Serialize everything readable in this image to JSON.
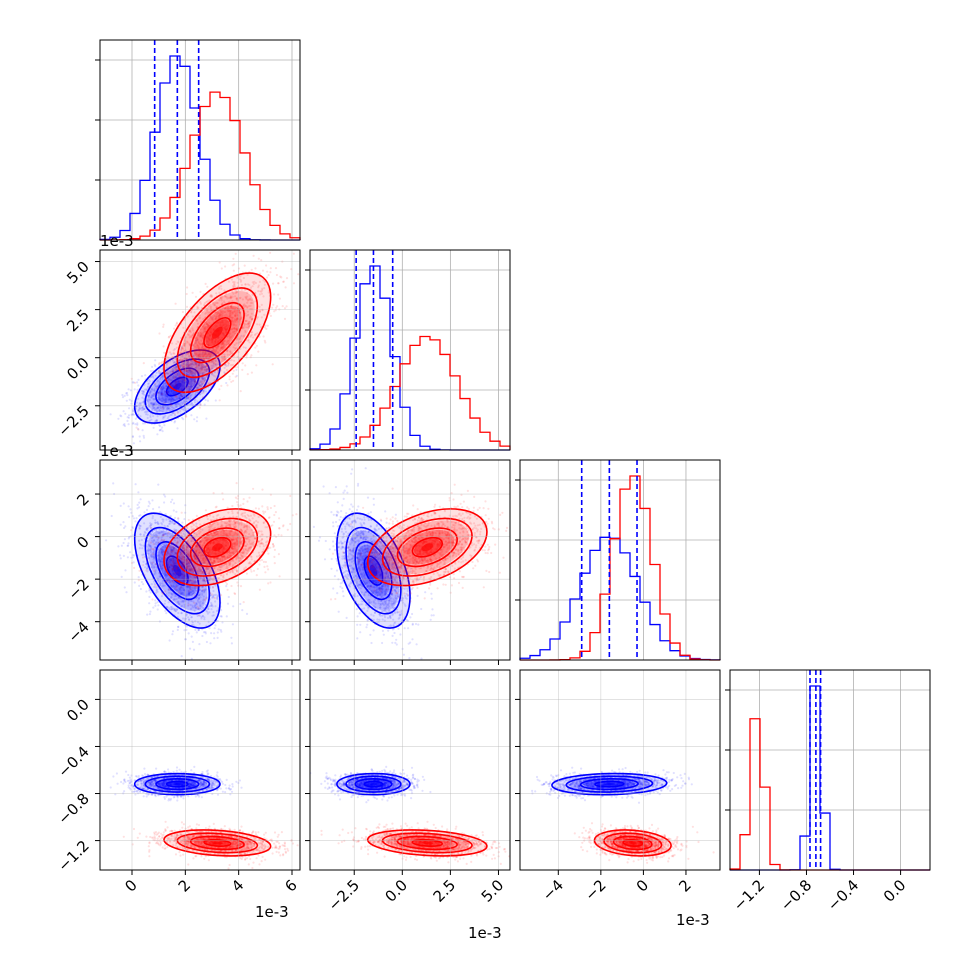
{
  "chart_data": {
    "type": "corner",
    "colors": {
      "blue": "#0000ff",
      "red": "#ff0000"
    },
    "grid": true,
    "parameters": [
      {
        "range": [
          -1.2,
          6.3
        ],
        "offset_label": "1e-3",
        "tick_values": [
          0,
          2,
          4,
          6
        ],
        "tick_labels": [
          "0",
          "2",
          "4",
          "6"
        ]
      },
      {
        "range": [
          -4.8,
          5.6
        ],
        "offset_label": "1e-3",
        "tick_values": [
          -2.5,
          0,
          2.5,
          5
        ],
        "tick_labels": [
          "−2.5",
          "0.0",
          "2.5",
          "5.0"
        ]
      },
      {
        "range": [
          -5.8,
          3.6
        ],
        "offset_label": "1e-3",
        "tick_values": [
          -4,
          -2,
          0,
          2
        ],
        "tick_labels": [
          "−4",
          "−2",
          "0",
          "2"
        ]
      },
      {
        "range": [
          -1.45,
          0.25
        ],
        "offset_label": "",
        "tick_values": [
          -1.2,
          -0.8,
          -0.4,
          0.0
        ],
        "tick_labels": [
          "−1.2",
          "−0.8",
          "−0.4",
          "0.0"
        ]
      }
    ],
    "distributions": {
      "blue": {
        "mean": [
          1.7,
          -1.5,
          -1.6,
          -0.72
        ],
        "sd": [
          0.8,
          0.95,
          1.35,
          0.045
        ],
        "quantiles": [
          [
            0.85,
            1.7,
            2.5
          ],
          [
            -2.4,
            -1.5,
            -0.5
          ],
          [
            -2.9,
            -1.6,
            -0.3
          ],
          [
            -0.77,
            -0.72,
            -0.68
          ]
        ]
      },
      "red": {
        "mean": [
          3.2,
          1.3,
          -0.5,
          -1.22
        ],
        "sd": [
          1.0,
          1.55,
          0.9,
          0.055
        ]
      }
    },
    "correlations": {
      "blue": [
        [
          0,
          1,
          0.55
        ],
        [
          0,
          2,
          -0.55
        ],
        [
          1,
          2,
          -0.45
        ],
        [
          2,
          3,
          0.1
        ]
      ],
      "red": [
        [
          0,
          1,
          0.6
        ],
        [
          0,
          2,
          0.35
        ],
        [
          1,
          2,
          0.4
        ],
        [
          0,
          3,
          -0.25
        ],
        [
          1,
          3,
          -0.25
        ],
        [
          2,
          3,
          -0.2
        ]
      ]
    }
  }
}
